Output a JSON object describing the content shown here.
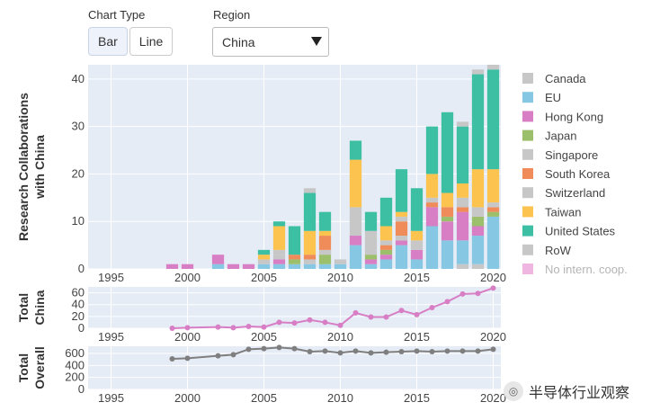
{
  "controls": {
    "chart_type_label": "Chart Type",
    "bar_label": "Bar",
    "line_label": "Line",
    "region_label": "Region",
    "region_value": "China"
  },
  "watermark": "半导体行业观察",
  "colors": {
    "plot_bg": "#e5ecf6",
    "total_china_line": "#d77ec5",
    "total_overall_line": "#7f7f7f"
  },
  "chart_data": [
    {
      "type": "bar",
      "stacked": true,
      "ylabel": [
        "Research Collaborations",
        "with China"
      ],
      "ylim": [
        0,
        43
      ],
      "yticks": [
        0,
        10,
        20,
        30,
        40
      ],
      "xlim": [
        1993.5,
        2020.5
      ],
      "xticks": [
        1995,
        2000,
        2005,
        2010,
        2015,
        2020
      ],
      "grid": true,
      "legend_position": "right",
      "x": [
        1999,
        2000,
        2001,
        2002,
        2003,
        2004,
        2005,
        2006,
        2007,
        2008,
        2009,
        2010,
        2011,
        2012,
        2013,
        2014,
        2015,
        2016,
        2017,
        2018,
        2019,
        2020
      ],
      "series": [
        {
          "name": "Canada",
          "color": "#c7c7c7",
          "values": [
            0,
            0,
            0,
            0,
            0,
            0,
            0,
            0,
            0,
            0,
            0,
            0,
            0,
            0,
            0,
            0,
            0,
            0,
            0,
            1,
            1,
            0
          ]
        },
        {
          "name": "EU",
          "color": "#86c7e3",
          "values": [
            0,
            0,
            0,
            1,
            0,
            0,
            1,
            1,
            1,
            1,
            1,
            1,
            5,
            1,
            2,
            5,
            2,
            9,
            6,
            5,
            6,
            11
          ]
        },
        {
          "name": "Hong Kong",
          "color": "#d77ec5",
          "values": [
            1,
            1,
            0,
            2,
            1,
            1,
            0,
            1,
            0,
            0,
            0,
            0,
            2,
            1,
            1,
            1,
            2,
            4,
            4,
            6,
            2,
            0
          ]
        },
        {
          "name": "Japan",
          "color": "#9cbf6b",
          "values": [
            0,
            0,
            0,
            0,
            0,
            0,
            0,
            0,
            1,
            0,
            2,
            0,
            0,
            1,
            1,
            0,
            0,
            0,
            1,
            0,
            2,
            1
          ]
        },
        {
          "name": "Singapore",
          "color": "#c7c7c7",
          "values": [
            0,
            0,
            0,
            0,
            0,
            0,
            0,
            1,
            0,
            1,
            1,
            0,
            0,
            0,
            0,
            1,
            0,
            0,
            0,
            0,
            0,
            0
          ]
        },
        {
          "name": "South Korea",
          "color": "#f08c5a",
          "values": [
            0,
            0,
            0,
            0,
            0,
            0,
            0,
            0,
            1,
            1,
            3,
            0,
            0,
            0,
            1,
            3,
            0,
            1,
            2,
            1,
            0,
            1
          ]
        },
        {
          "name": "Switzerland",
          "color": "#c7c7c7",
          "values": [
            0,
            0,
            0,
            0,
            0,
            0,
            1,
            1,
            0,
            0,
            0,
            1,
            6,
            5,
            1,
            1,
            2,
            1,
            0,
            2,
            2,
            1
          ]
        },
        {
          "name": "Taiwan",
          "color": "#fcc34f",
          "values": [
            0,
            0,
            0,
            0,
            0,
            0,
            1,
            5,
            0,
            5,
            1,
            0,
            10,
            0,
            3,
            1,
            2,
            5,
            3,
            3,
            8,
            7
          ]
        },
        {
          "name": "United States",
          "color": "#3dbfa3",
          "values": [
            0,
            0,
            0,
            0,
            0,
            0,
            1,
            1,
            6,
            8,
            4,
            0,
            4,
            4,
            6,
            9,
            9,
            10,
            17,
            12,
            20,
            21
          ]
        },
        {
          "name": "RoW",
          "color": "#c7c7c7",
          "values": [
            0,
            0,
            0,
            0,
            0,
            0,
            0,
            0,
            0,
            1,
            0,
            0,
            0,
            0,
            0,
            0,
            0,
            0,
            0,
            1,
            1,
            1
          ]
        },
        {
          "name": "No intern. coop.",
          "color": "#eeb6e1",
          "values": [
            0,
            0,
            0,
            0,
            0,
            0,
            0,
            0,
            0,
            0,
            0,
            0,
            0,
            0,
            0,
            0,
            0,
            0,
            0,
            0,
            0,
            0
          ],
          "legend_faded": true
        }
      ]
    },
    {
      "type": "line",
      "ylabel": [
        "Total",
        "China"
      ],
      "ylim": [
        0,
        70
      ],
      "yticks": [
        0,
        20,
        40,
        60
      ],
      "xlim": [
        1993.5,
        2020.5
      ],
      "xticks": [
        1995,
        2000,
        2005,
        2010,
        2015,
        2020
      ],
      "x": [
        1999,
        2000,
        2002,
        2003,
        2004,
        2005,
        2006,
        2007,
        2008,
        2009,
        2010,
        2011,
        2012,
        2013,
        2014,
        2015,
        2016,
        2017,
        2018,
        2019,
        2020
      ],
      "series": [
        {
          "values": [
            0,
            1,
            2,
            1,
            3,
            2,
            10,
            9,
            14,
            10,
            5,
            26,
            19,
            19,
            30,
            23,
            35,
            45,
            58,
            59,
            68
          ]
        }
      ]
    },
    {
      "type": "line",
      "ylabel": [
        "Total",
        "Overall"
      ],
      "ylim": [
        0,
        720
      ],
      "yticks": [
        0,
        200,
        400,
        600
      ],
      "xlim": [
        1993.5,
        2020.5
      ],
      "xticks": [
        1995,
        2000,
        2005,
        2010,
        2015,
        2020
      ],
      "x": [
        1999,
        2000,
        2002,
        2003,
        2004,
        2005,
        2006,
        2007,
        2008,
        2009,
        2010,
        2011,
        2012,
        2013,
        2014,
        2015,
        2016,
        2017,
        2018,
        2019,
        2020
      ],
      "series": [
        {
          "values": [
            510,
            520,
            560,
            580,
            670,
            680,
            700,
            680,
            630,
            640,
            610,
            640,
            610,
            620,
            630,
            640,
            630,
            640,
            640,
            640,
            670
          ]
        }
      ]
    }
  ]
}
